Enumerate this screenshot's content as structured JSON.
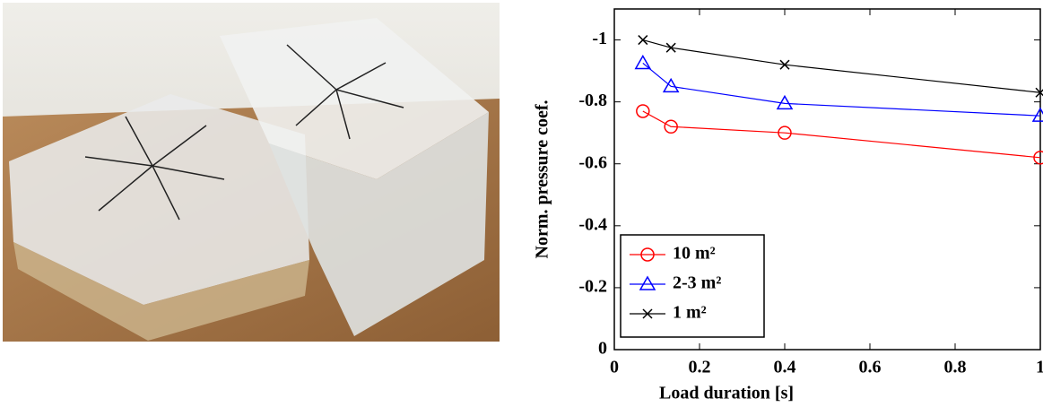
{
  "chart_data": {
    "type": "line",
    "xlabel": "Load duration [s]",
    "ylabel": "Norm. pressure coef.",
    "x": [
      0.067,
      0.133,
      0.4,
      1.0
    ],
    "series": [
      {
        "name": "10 m²",
        "color": "#ff0000",
        "marker": "circle",
        "values": [
          -0.77,
          -0.72,
          -0.7,
          -0.62
        ]
      },
      {
        "name": "2-3 m²",
        "color": "#0000ff",
        "marker": "triangle",
        "values": [
          -0.925,
          -0.85,
          -0.795,
          -0.755
        ]
      },
      {
        "name": "1 m²",
        "color": "#000000",
        "marker": "x",
        "values": [
          -1.0,
          -0.975,
          -0.92,
          -0.83
        ]
      }
    ],
    "xlim": [
      0,
      1
    ],
    "xticks": [
      0,
      0.2,
      0.4,
      0.6,
      0.8,
      1
    ],
    "ylim": [
      0,
      -1.1
    ],
    "yticks": [
      0,
      -0.2,
      -0.4,
      -0.6,
      -0.8,
      -1
    ],
    "grid": false,
    "legend": "lower left"
  }
}
